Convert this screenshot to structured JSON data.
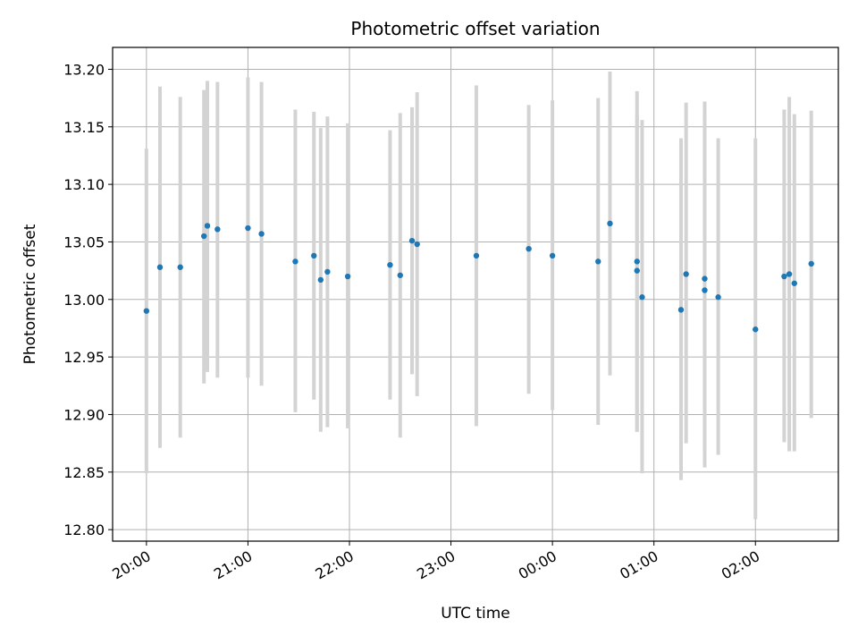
{
  "chart_data": {
    "type": "scatter",
    "title": "Photometric offset variation",
    "xlabel": "UTC time",
    "ylabel": "Photometric offset",
    "x_tick_labels": [
      "20:00",
      "21:00",
      "22:00",
      "23:00",
      "00:00",
      "01:00",
      "02:00"
    ],
    "y_tick_labels": [
      "12.80",
      "12.85",
      "12.90",
      "12.95",
      "13.00",
      "13.05",
      "13.10",
      "13.15",
      "13.20"
    ],
    "x_ticks_hours": [
      0,
      1,
      2,
      3,
      4,
      5,
      6
    ],
    "y_ticks": [
      12.8,
      12.85,
      12.9,
      12.95,
      13.0,
      13.05,
      13.1,
      13.15,
      13.2
    ],
    "xlim": [
      "19:40",
      "02:49"
    ],
    "ylim": [
      12.79,
      13.219
    ],
    "grid": true,
    "colors": {
      "points": "#1f77b4",
      "errorbars": "#d3d3d3",
      "grid": "#b0b0b0"
    },
    "points": [
      {
        "time": "20:00",
        "y": 12.99,
        "ylo": 12.849,
        "yhi": 13.131
      },
      {
        "time": "20:08",
        "y": 13.028,
        "ylo": 12.871,
        "yhi": 13.185
      },
      {
        "time": "20:20",
        "y": 13.028,
        "ylo": 12.88,
        "yhi": 13.176
      },
      {
        "time": "20:34",
        "y": 13.055,
        "ylo": 12.927,
        "yhi": 13.182
      },
      {
        "time": "20:36",
        "y": 13.064,
        "ylo": 12.937,
        "yhi": 13.19
      },
      {
        "time": "20:42",
        "y": 13.061,
        "ylo": 12.932,
        "yhi": 13.189
      },
      {
        "time": "21:00",
        "y": 13.062,
        "ylo": 12.932,
        "yhi": 13.193
      },
      {
        "time": "21:08",
        "y": 13.057,
        "ylo": 12.925,
        "yhi": 13.189
      },
      {
        "time": "21:28",
        "y": 13.033,
        "ylo": 12.902,
        "yhi": 13.165
      },
      {
        "time": "21:39",
        "y": 13.038,
        "ylo": 12.913,
        "yhi": 13.163
      },
      {
        "time": "21:43",
        "y": 13.017,
        "ylo": 12.885,
        "yhi": 13.149
      },
      {
        "time": "21:47",
        "y": 13.024,
        "ylo": 12.889,
        "yhi": 13.159
      },
      {
        "time": "21:59",
        "y": 13.02,
        "ylo": 12.888,
        "yhi": 13.153
      },
      {
        "time": "22:24",
        "y": 13.03,
        "ylo": 12.913,
        "yhi": 13.147
      },
      {
        "time": "22:30",
        "y": 13.021,
        "ylo": 12.88,
        "yhi": 13.162
      },
      {
        "time": "22:37",
        "y": 13.051,
        "ylo": 12.935,
        "yhi": 13.167
      },
      {
        "time": "22:40",
        "y": 13.048,
        "ylo": 12.916,
        "yhi": 13.18
      },
      {
        "time": "23:15",
        "y": 13.038,
        "ylo": 12.89,
        "yhi": 13.186
      },
      {
        "time": "23:46",
        "y": 13.044,
        "ylo": 12.918,
        "yhi": 13.169
      },
      {
        "time": "00:00",
        "y": 13.038,
        "ylo": 12.904,
        "yhi": 13.173
      },
      {
        "time": "00:27",
        "y": 13.033,
        "ylo": 12.891,
        "yhi": 13.175
      },
      {
        "time": "00:34",
        "y": 13.066,
        "ylo": 12.934,
        "yhi": 13.198
      },
      {
        "time": "00:50",
        "y": 13.033,
        "ylo": 12.885,
        "yhi": 13.181
      },
      {
        "time": "00:50",
        "y": 13.025,
        "ylo": 12.885,
        "yhi": 13.16
      },
      {
        "time": "00:53",
        "y": 13.002,
        "ylo": 12.849,
        "yhi": 13.156
      },
      {
        "time": "01:16",
        "y": 12.991,
        "ylo": 12.843,
        "yhi": 13.14
      },
      {
        "time": "01:19",
        "y": 13.022,
        "ylo": 12.875,
        "yhi": 13.171
      },
      {
        "time": "01:30",
        "y": 13.018,
        "ylo": 12.864,
        "yhi": 13.172
      },
      {
        "time": "01:30",
        "y": 13.008,
        "ylo": 12.854,
        "yhi": 13.163
      },
      {
        "time": "01:38",
        "y": 13.002,
        "ylo": 12.865,
        "yhi": 13.14
      },
      {
        "time": "02:00",
        "y": 12.974,
        "ylo": 12.809,
        "yhi": 13.14
      },
      {
        "time": "02:17",
        "y": 13.02,
        "ylo": 12.876,
        "yhi": 13.165
      },
      {
        "time": "02:20",
        "y": 13.022,
        "ylo": 12.868,
        "yhi": 13.176
      },
      {
        "time": "02:23",
        "y": 13.014,
        "ylo": 12.868,
        "yhi": 13.161
      },
      {
        "time": "02:33",
        "y": 13.031,
        "ylo": 12.897,
        "yhi": 13.164
      }
    ]
  }
}
